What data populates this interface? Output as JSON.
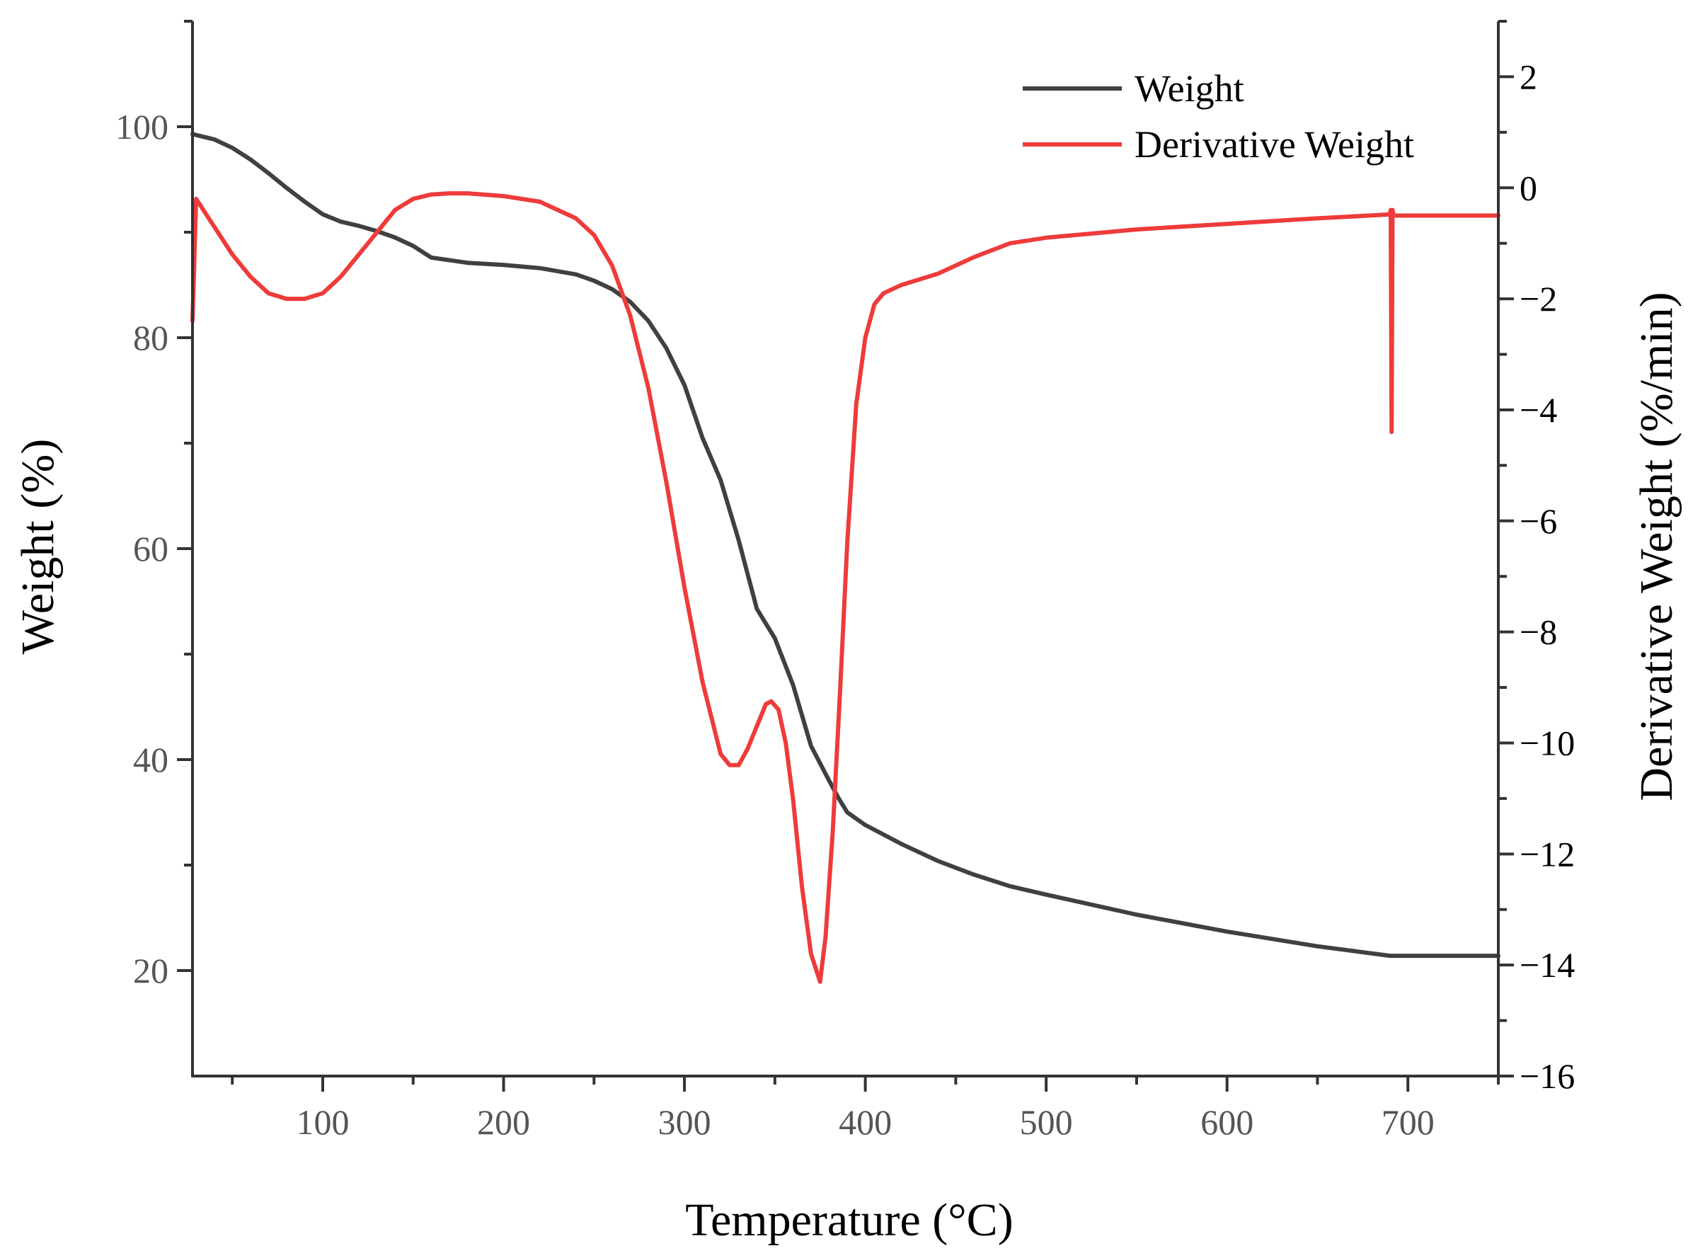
{
  "chart_data": {
    "type": "line",
    "title": "",
    "xlabel": "Temperature (°C)",
    "ylabel": "Weight (%)",
    "y2label": "Derivative Weight (%/min)",
    "xlim": [
      28,
      750
    ],
    "ylim": [
      10,
      110
    ],
    "y2lim": [
      -16,
      3
    ],
    "xticks": [
      100,
      200,
      300,
      400,
      500,
      600,
      700
    ],
    "xtick_labels": [
      "100",
      "200",
      "300",
      "400",
      "500",
      "600",
      "700"
    ],
    "yticks": [
      20,
      40,
      60,
      80,
      100
    ],
    "ytick_labels": [
      "20",
      "40",
      "60",
      "80",
      "100"
    ],
    "y2ticks": [
      -16,
      -14,
      -12,
      -10,
      -8,
      -6,
      -4,
      -2,
      0,
      2
    ],
    "y2tick_labels": [
      "−16",
      "−14",
      "−12",
      "−10",
      "−8",
      "−6",
      "−4",
      "−2",
      "0",
      "2"
    ],
    "grid": false,
    "legend_position": "top-right",
    "colors": {
      "weight": "#404040",
      "derivative": "#ee3b3b",
      "axis": "#333333"
    },
    "series": [
      {
        "name": "Weight",
        "axis": "left",
        "x": [
          28,
          40,
          50,
          60,
          70,
          80,
          90,
          100,
          110,
          120,
          130,
          140,
          150,
          160,
          180,
          200,
          220,
          240,
          250,
          260,
          270,
          280,
          290,
          300,
          310,
          320,
          330,
          340,
          350,
          360,
          370,
          380,
          385,
          390,
          395,
          400,
          420,
          440,
          460,
          480,
          500,
          550,
          600,
          650,
          690,
          700,
          750
        ],
        "values": [
          99.3,
          98.8,
          98.0,
          96.9,
          95.6,
          94.2,
          92.9,
          91.7,
          91.0,
          90.6,
          90.1,
          89.5,
          88.7,
          87.6,
          87.1,
          86.9,
          86.6,
          86.0,
          85.4,
          84.6,
          83.4,
          81.6,
          79.0,
          75.5,
          70.5,
          66.5,
          60.8,
          54.3,
          51.5,
          47.1,
          41.3,
          38.0,
          36.4,
          35.0,
          34.4,
          33.8,
          32.0,
          30.4,
          29.1,
          28.0,
          27.2,
          25.3,
          23.7,
          22.3,
          21.4,
          21.4,
          21.4
        ]
      },
      {
        "name": "Derivative Weight",
        "axis": "right",
        "x": [
          28,
          30,
          40,
          50,
          60,
          70,
          80,
          90,
          100,
          110,
          120,
          130,
          140,
          150,
          160,
          170,
          180,
          200,
          220,
          240,
          250,
          260,
          270,
          280,
          290,
          300,
          310,
          320,
          325,
          330,
          335,
          340,
          345,
          348,
          352,
          356,
          360,
          365,
          370,
          375,
          378,
          382,
          386,
          390,
          395,
          400,
          405,
          410,
          420,
          440,
          460,
          480,
          500,
          550,
          600,
          650,
          690,
          690.5,
          691,
          691.5,
          692,
          700,
          750
        ],
        "values": [
          -2.4,
          -0.2,
          -0.7,
          -1.2,
          -1.6,
          -1.9,
          -2.0,
          -2.0,
          -1.9,
          -1.6,
          -1.2,
          -0.8,
          -0.4,
          -0.2,
          -0.12,
          -0.1,
          -0.1,
          -0.15,
          -0.25,
          -0.55,
          -0.85,
          -1.4,
          -2.3,
          -3.6,
          -5.3,
          -7.2,
          -8.9,
          -10.2,
          -10.4,
          -10.4,
          -10.1,
          -9.7,
          -9.3,
          -9.25,
          -9.4,
          -10.0,
          -11.0,
          -12.6,
          -13.8,
          -14.3,
          -13.5,
          -11.6,
          -9.1,
          -6.4,
          -3.9,
          -2.7,
          -2.1,
          -1.9,
          -1.75,
          -1.55,
          -1.25,
          -1.0,
          -0.9,
          -0.75,
          -0.65,
          -0.55,
          -0.48,
          -0.4,
          -4.4,
          -0.4,
          -0.5,
          -0.5,
          -0.5
        ]
      }
    ]
  }
}
